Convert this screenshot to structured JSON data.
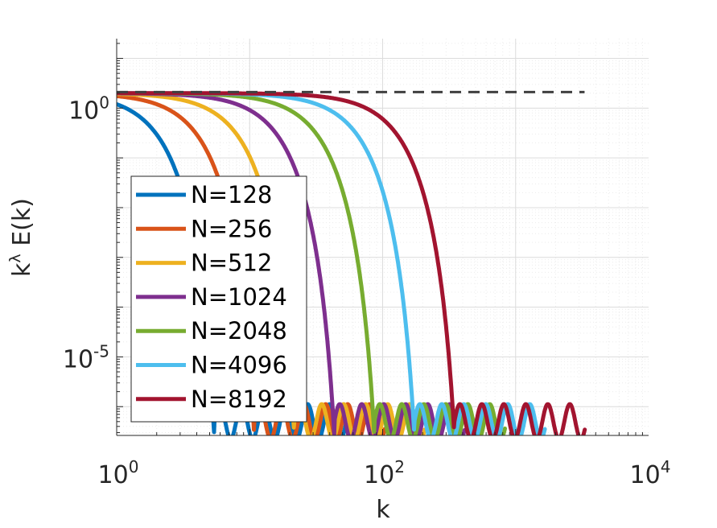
{
  "chart_data": {
    "type": "line",
    "xscale": "log",
    "yscale": "log",
    "xlim": [
      1,
      10000
    ],
    "ylim": [
      1e-08,
      10
    ],
    "xlabel": "k",
    "ylabel": "k",
    "ylabel_sup": "λ",
    "ylabel_rest": " E(k)",
    "x_ticks": [
      {
        "base": "10",
        "exp": "0"
      },
      {
        "base": "10",
        "exp": "2"
      },
      {
        "base": "10",
        "exp": "4"
      }
    ],
    "y_ticks": [
      {
        "base": "10",
        "exp": "0"
      },
      {
        "base": "10",
        "exp": "-5"
      }
    ],
    "grid": true,
    "legend_position": "bottom-left",
    "reference_line": {
      "style": "dashed",
      "color": "#404040",
      "x": [
        1,
        3300
      ],
      "y": [
        2.1,
        2.1
      ]
    },
    "series": [
      {
        "name": "N=128",
        "color": "#0072BD",
        "cutoff": 2.2,
        "tail_end": 53
      },
      {
        "name": "N=256",
        "color": "#D95319",
        "cutoff": 4.4,
        "tail_end": 104
      },
      {
        "name": "N=512",
        "color": "#EDB120",
        "cutoff": 8.8,
        "tail_end": 208
      },
      {
        "name": "N=1024",
        "color": "#7E2F8E",
        "cutoff": 17.6,
        "tail_end": 416
      },
      {
        "name": "N=2048",
        "color": "#77AC30",
        "cutoff": 35.2,
        "tail_end": 832
      },
      {
        "name": "N=4096",
        "color": "#4DBEEE",
        "cutoff": 70.4,
        "tail_end": 1664
      },
      {
        "name": "N=8192",
        "color": "#A2142F",
        "cutoff": 140.8,
        "tail_end": 3330
      }
    ]
  }
}
